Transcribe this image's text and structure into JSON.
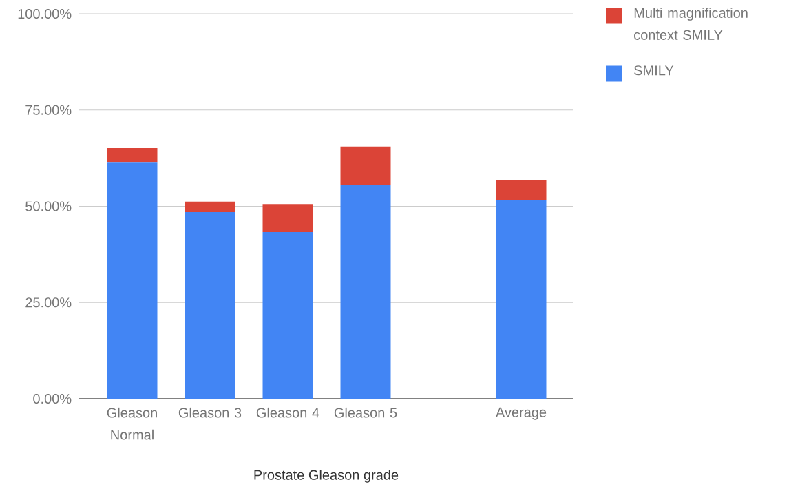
{
  "chart_data": {
    "type": "bar",
    "stacked": true,
    "xlabel": "Prostate Gleason grade",
    "categories": [
      "Gleason Normal",
      "Gleason 3",
      "Gleason 4",
      "Gleason 5",
      null,
      "Average"
    ],
    "series": [
      {
        "name": "SMILY",
        "color": "#4285f4",
        "values": [
          61.5,
          48.5,
          43.3,
          55.5,
          null,
          51.5
        ]
      },
      {
        "name": "Multi magnification context SMILY",
        "color": "#db4437",
        "values": [
          3.6,
          2.7,
          7.3,
          10.0,
          null,
          5.4
        ]
      }
    ],
    "ylim": [
      0,
      100
    ],
    "yticks": [
      {
        "value": 0,
        "label": "0.00%"
      },
      {
        "value": 25,
        "label": "25.00%"
      },
      {
        "value": 50,
        "label": "50.00%"
      },
      {
        "value": 75,
        "label": "75.00%"
      },
      {
        "value": 100,
        "label": "100.00%"
      }
    ],
    "grid": "y",
    "legend": "top right"
  }
}
